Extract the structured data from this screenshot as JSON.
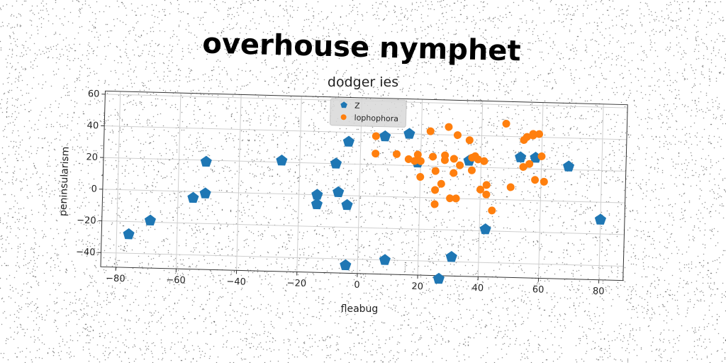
{
  "chart_data": {
    "type": "scatter",
    "title": "overhouse nymphet",
    "subtitle": "dodger ies",
    "xlabel": "fleabug",
    "ylabel": "peninsularism",
    "xlim": [
      -85,
      88
    ],
    "ylim": [
      -49,
      62
    ],
    "xticks": [
      -80,
      -60,
      -40,
      -20,
      0,
      20,
      40,
      60,
      80
    ],
    "yticks": [
      -40,
      -20,
      0,
      20,
      40,
      60
    ],
    "grid": true,
    "legend_position": "top-center",
    "series": [
      {
        "name": "Z",
        "marker": "pentagon",
        "color": "#1f77b4",
        "points": [
          [
            -76,
            -28
          ],
          [
            -69,
            -19
          ],
          [
            -55,
            -4
          ],
          [
            -51,
            -1
          ],
          [
            -51,
            19
          ],
          [
            -26,
            21
          ],
          [
            -14,
            0
          ],
          [
            -14,
            -6
          ],
          [
            -8,
            20
          ],
          [
            -7,
            2
          ],
          [
            -4,
            34
          ],
          [
            -4,
            -6
          ],
          [
            -4,
            -44
          ],
          [
            8,
            38
          ],
          [
            9,
            -40
          ],
          [
            16,
            40
          ],
          [
            19,
            22
          ],
          [
            27,
            -51
          ],
          [
            31,
            -37
          ],
          [
            36,
            24
          ],
          [
            42,
            -19
          ],
          [
            53,
            27
          ],
          [
            58,
            27
          ],
          [
            69,
            22
          ],
          [
            80,
            -11
          ]
        ]
      },
      {
        "name": "lophophora",
        "marker": "circle",
        "color": "#ff7f0e",
        "points": [
          [
            5,
            38
          ],
          [
            5,
            27
          ],
          [
            12,
            27
          ],
          [
            16,
            24
          ],
          [
            18,
            23
          ],
          [
            19,
            27
          ],
          [
            20,
            23
          ],
          [
            20,
            13
          ],
          [
            23,
            42
          ],
          [
            24,
            26
          ],
          [
            25,
            17
          ],
          [
            25,
            5
          ],
          [
            25,
            -4
          ],
          [
            27,
            9
          ],
          [
            28,
            24
          ],
          [
            28,
            27
          ],
          [
            29,
            45
          ],
          [
            30,
            0
          ],
          [
            31,
            25
          ],
          [
            31,
            16
          ],
          [
            32,
            40
          ],
          [
            32,
            0
          ],
          [
            33,
            21
          ],
          [
            36,
            37
          ],
          [
            37,
            26
          ],
          [
            37,
            18
          ],
          [
            38,
            27
          ],
          [
            39,
            25
          ],
          [
            40,
            6
          ],
          [
            41,
            24
          ],
          [
            42,
            3
          ],
          [
            42,
            9
          ],
          [
            44,
            -7
          ],
          [
            48,
            48
          ],
          [
            50,
            8
          ],
          [
            54,
            21
          ],
          [
            54,
            38
          ],
          [
            55,
            40
          ],
          [
            56,
            23
          ],
          [
            57,
            42
          ],
          [
            57,
            41
          ],
          [
            58,
            13
          ],
          [
            59,
            42
          ],
          [
            60,
            28
          ],
          [
            61,
            12
          ]
        ]
      }
    ]
  }
}
